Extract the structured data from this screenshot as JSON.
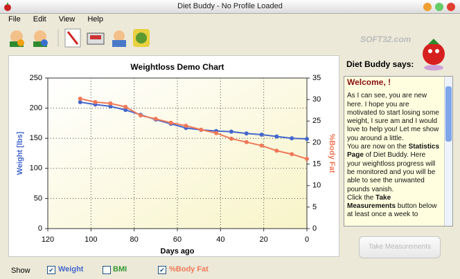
{
  "window": {
    "title": "Diet Buddy - No Profile Loaded"
  },
  "menu": [
    "File",
    "Edit",
    "View",
    "Help"
  ],
  "watermark": "SOFT32.com",
  "chart_data": {
    "type": "line",
    "title": "Weightloss Demo Chart",
    "x_label": "Days ago",
    "y_label": "Weight [lbs]",
    "y2_label": "%Body Fat",
    "x": [
      105,
      98,
      91,
      84,
      77,
      70,
      63,
      56,
      49,
      42,
      35,
      28,
      21,
      14,
      7,
      0
    ],
    "series": [
      {
        "name": "Weight",
        "color": "#4466cc",
        "checked": true,
        "values": [
          210,
          206,
          203,
          197,
          189,
          181,
          174,
          167,
          164,
          162,
          161,
          158,
          156,
          153,
          150,
          149
        ]
      },
      {
        "name": "%Body Fat",
        "color": "#f07858",
        "axis": "y2",
        "checked": true,
        "values": [
          30.2,
          29.4,
          29.1,
          28.3,
          26.3,
          25.5,
          24.6,
          23.9,
          23.0,
          22.2,
          20.9,
          20.1,
          19.3,
          18.1,
          17.3,
          16.2
        ]
      }
    ],
    "xlim": [
      120,
      0
    ],
    "xticks": [
      120,
      100,
      80,
      60,
      40,
      20,
      0
    ],
    "ylim": [
      0,
      250
    ],
    "yticks": [
      0,
      50,
      100,
      150,
      200,
      250
    ],
    "y2lim": [
      0,
      35
    ],
    "y2ticks": [
      0,
      5,
      10,
      15,
      20,
      25,
      30,
      35
    ],
    "grid": true
  },
  "assistant": {
    "heading": "Diet Buddy says:",
    "message_title": "Welcome, !",
    "paragraphs": [
      [
        "As I can see, you are new here. I hope you are motivated to start losing some weight, I sure am and I would love to help you! Let me show you around a little."
      ],
      [
        "You are now on the ",
        "Statistics Page",
        " of Diet Buddy. Here your weightloss progress will be monitored and you will be able to see the unwanted pounds vanish."
      ],
      [
        "Click the ",
        "Take Measurements",
        " button below at least once a week to"
      ]
    ],
    "button": "Take Measurements"
  },
  "toggles": {
    "label": "Show",
    "bmi_label": "BMI",
    "bmi_color": "#339933",
    "bmi_checked": false
  }
}
